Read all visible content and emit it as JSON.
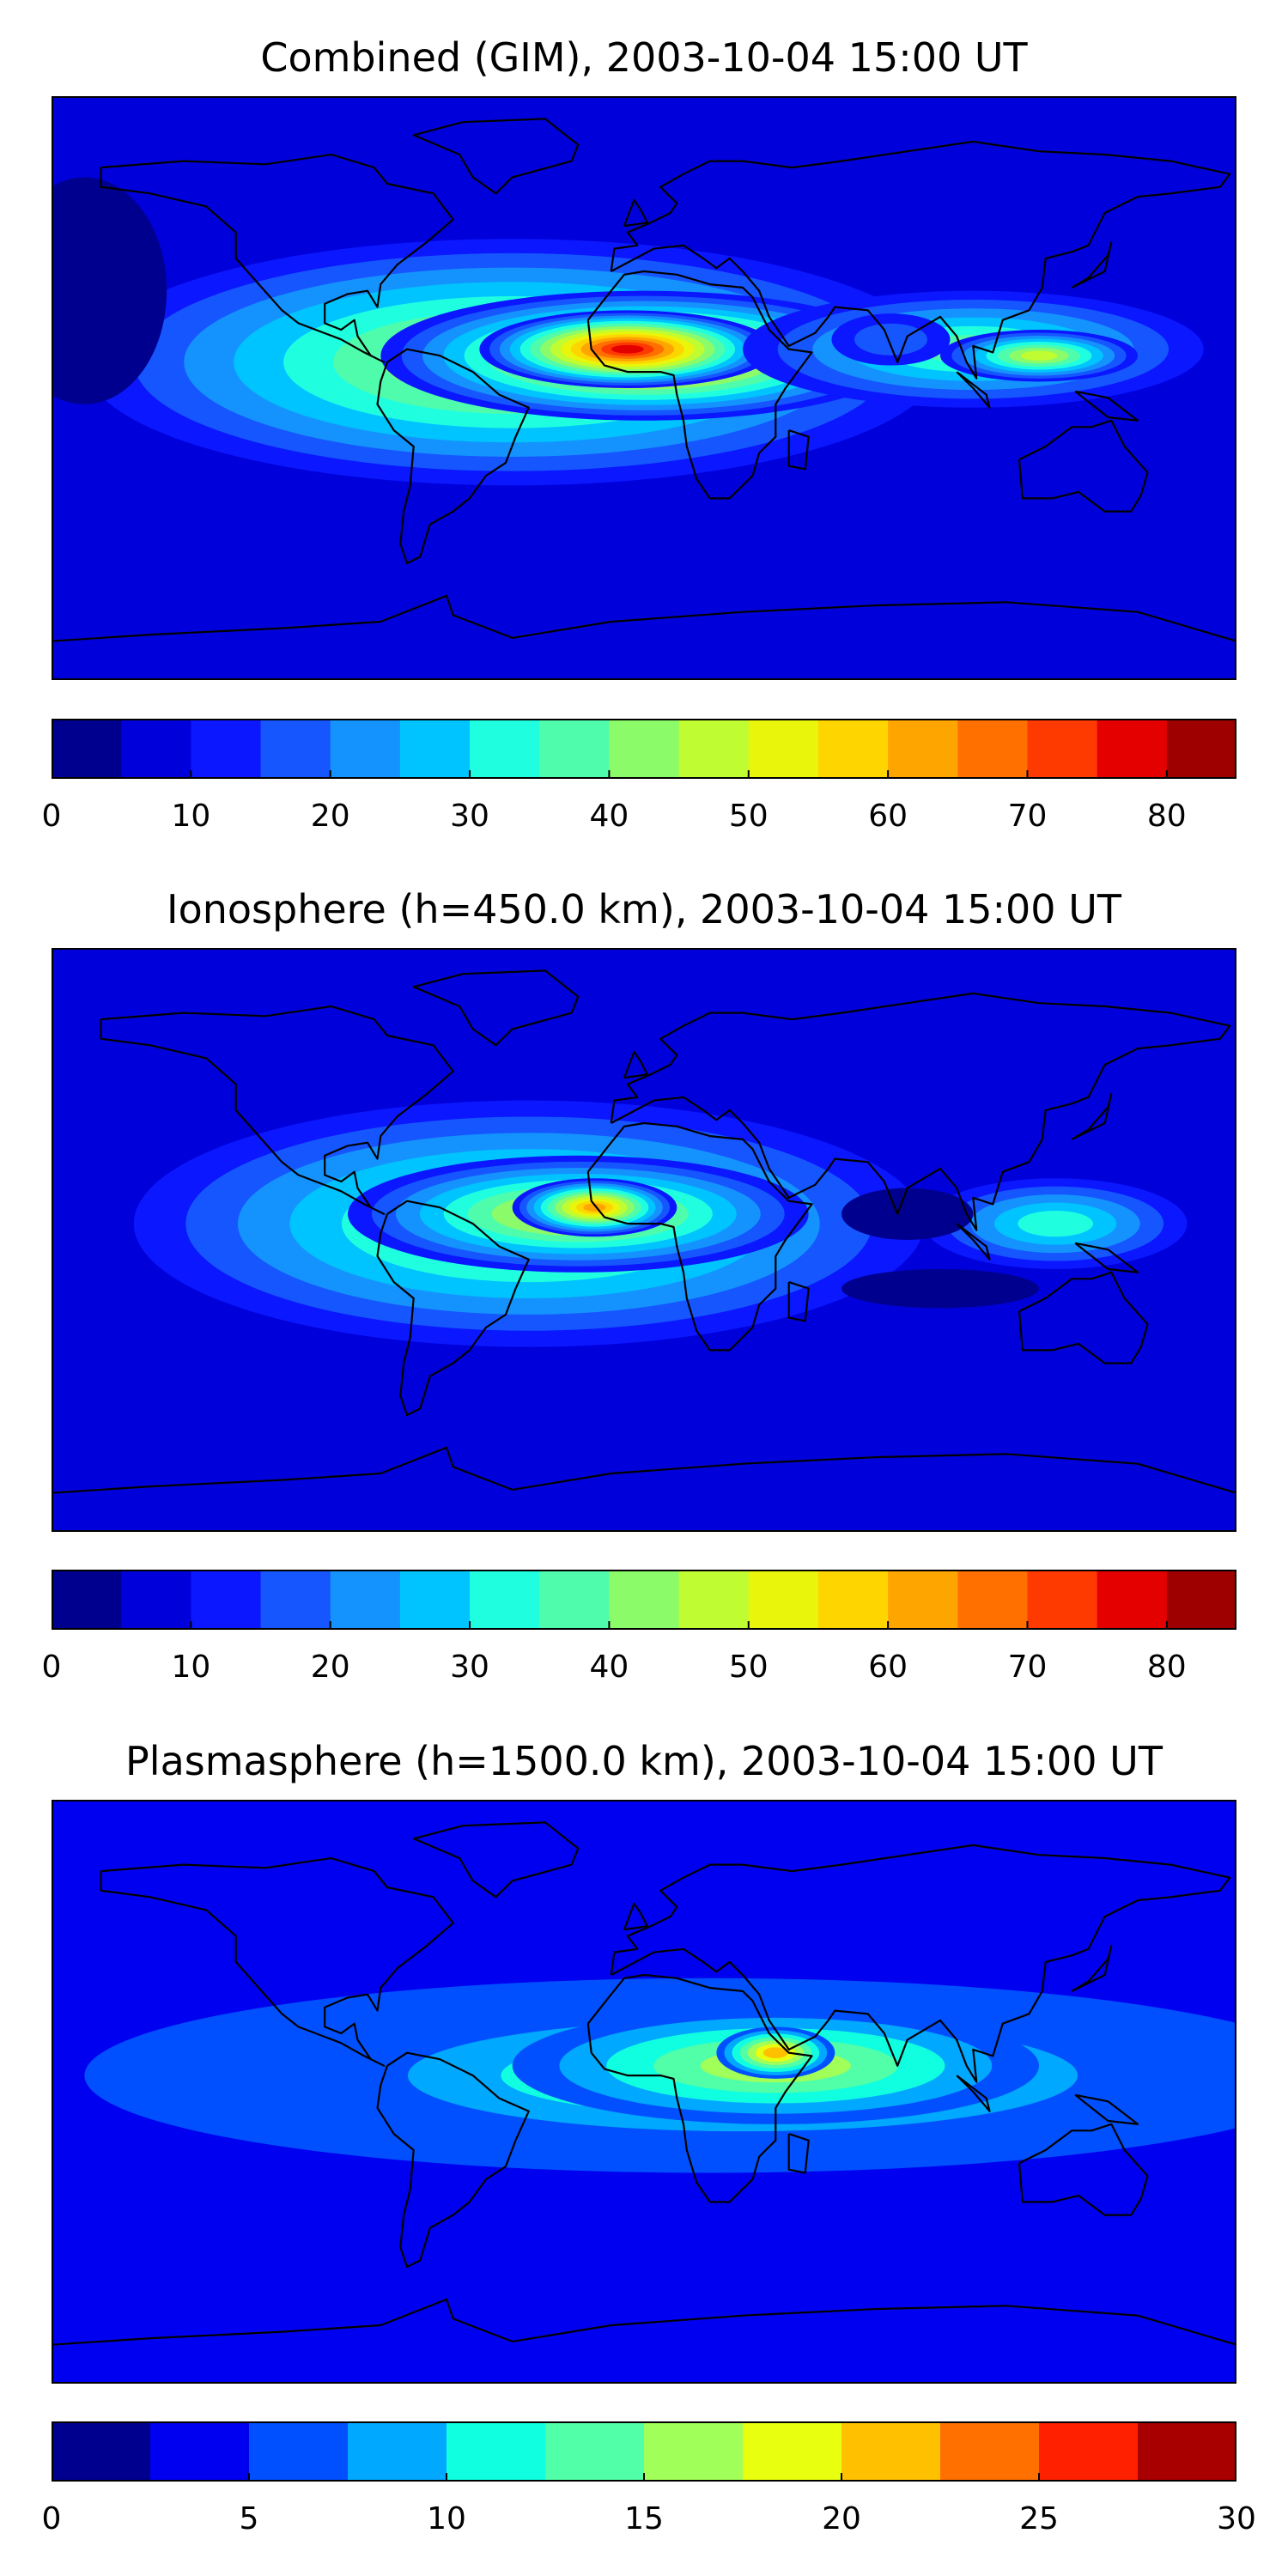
{
  "chart_data": [
    {
      "type": "heatmap",
      "title": "Combined (GIM), 2003-10-04 15:00 UT",
      "colorbar": {
        "min": 0,
        "max": 85,
        "step": 5,
        "ticks": [
          0,
          10,
          20,
          30,
          40,
          50,
          60,
          70,
          80
        ],
        "tick_labels": [
          "0",
          "10",
          "20",
          "30",
          "40",
          "50",
          "60",
          "70",
          "80"
        ],
        "colors": [
          "#00008f",
          "#0000db",
          "#0b17ff",
          "#1656ff",
          "#1493ff",
          "#00c4ff",
          "#1fffe0",
          "#4ffcac",
          "#8cfb6a",
          "#bffc31",
          "#e9f50a",
          "#ffd500",
          "#ffa500",
          "#ff7000",
          "#ff3a00",
          "#e50000",
          "#9e0000"
        ]
      },
      "background_level": 1,
      "blobs": [
        {
          "lon": -40,
          "lat": 8,
          "rlon": 130,
          "rlat": 38,
          "level": 9
        },
        {
          "lon": 0,
          "lat": 10,
          "rlon": 80,
          "rlat": 20,
          "level": 13
        },
        {
          "lon": -5,
          "lat": 12,
          "rlon": 45,
          "rlat": 12,
          "level": 15
        },
        {
          "lon": 100,
          "lat": 12,
          "rlon": 70,
          "rlat": 18,
          "level": 7
        },
        {
          "lon": 120,
          "lat": 10,
          "rlon": 30,
          "rlat": 8,
          "level": 9
        },
        {
          "lon": 75,
          "lat": 15,
          "rlon": 18,
          "rlat": 8,
          "level": 3
        },
        {
          "lon": -170,
          "lat": 30,
          "rlon": 25,
          "rlat": 35,
          "level": 0
        }
      ]
    },
    {
      "type": "heatmap",
      "title": "Ionosphere  (h=450.0 km), 2003-10-04 15:00 UT",
      "colorbar": {
        "min": 0,
        "max": 85,
        "step": 5,
        "ticks": [
          0,
          10,
          20,
          30,
          40,
          50,
          60,
          70,
          80
        ],
        "tick_labels": [
          "0",
          "10",
          "20",
          "30",
          "40",
          "50",
          "60",
          "70",
          "80"
        ],
        "colors": [
          "#00008f",
          "#0000db",
          "#0b17ff",
          "#1656ff",
          "#1493ff",
          "#00c4ff",
          "#1fffe0",
          "#4ffcac",
          "#8cfb6a",
          "#bffc31",
          "#e9f50a",
          "#ffd500",
          "#ffa500",
          "#ff7000",
          "#ff3a00",
          "#e50000",
          "#9e0000"
        ]
      },
      "background_level": 1,
      "blobs": [
        {
          "lon": -35,
          "lat": 5,
          "rlon": 120,
          "rlat": 38,
          "level": 8
        },
        {
          "lon": -20,
          "lat": 8,
          "rlon": 70,
          "rlat": 18,
          "level": 10
        },
        {
          "lon": -15,
          "lat": 10,
          "rlon": 25,
          "rlat": 9,
          "level": 12
        },
        {
          "lon": 125,
          "lat": 5,
          "rlon": 40,
          "rlat": 14,
          "level": 6
        },
        {
          "lon": 80,
          "lat": 8,
          "rlon": 20,
          "rlat": 8,
          "level": 0
        },
        {
          "lon": 90,
          "lat": -15,
          "rlon": 30,
          "rlat": 6,
          "level": 0
        }
      ]
    },
    {
      "type": "heatmap",
      "title": "Plasmasphere (h=1500.0 km), 2003-10-04 15:00 UT",
      "colorbar": {
        "min": 0,
        "max": 30,
        "step": 2.5,
        "ticks": [
          0,
          5,
          10,
          15,
          20,
          25,
          30
        ],
        "tick_labels": [
          "0",
          "5",
          "10",
          "15",
          "20",
          "25",
          "30"
        ],
        "colors": [
          "#00008f",
          "#0000f0",
          "#0050ff",
          "#00a8ff",
          "#10ffe0",
          "#50ffa8",
          "#a0ff58",
          "#e8ff10",
          "#ffc000",
          "#ff7000",
          "#ff2000",
          "#a80000"
        ]
      },
      "background_level": 1,
      "blobs": [
        {
          "lon": 20,
          "lat": 5,
          "rlon": 190,
          "rlat": 30,
          "level": 3
        },
        {
          "lon": 30,
          "lat": 5,
          "rlon": 130,
          "rlat": 22,
          "level": 5
        },
        {
          "lon": 40,
          "lat": 8,
          "rlon": 80,
          "rlat": 18,
          "level": 6
        },
        {
          "lon": 40,
          "lat": 12,
          "rlon": 18,
          "rlat": 8,
          "level": 8
        },
        {
          "lon": -175,
          "lat": 10,
          "rlon": 20,
          "rlat": 15,
          "level": 1
        }
      ]
    }
  ]
}
